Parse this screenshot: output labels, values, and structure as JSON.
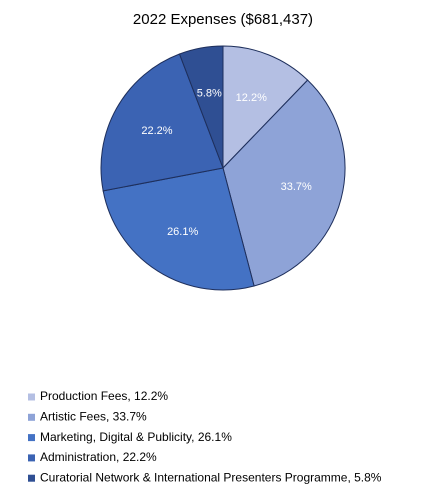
{
  "chart_data": {
    "type": "pie",
    "title": "2022 Expenses ($681,437)",
    "categories": [
      "Production Fees, 12.2%",
      "Artistic Fees, 33.7%",
      "Marketing, Digital & Publicity, 26.1%",
      "Administration, 22.2%",
      "Curatorial Network & International Presenters Programme, 5.8%"
    ],
    "values": [
      12.2,
      33.7,
      26.1,
      22.2,
      5.8
    ],
    "value_labels": [
      "12.2%",
      "33.7%",
      "26.1%",
      "22.2%",
      "5.8%"
    ],
    "colors": [
      "#b4bfe3",
      "#8ea3d7",
      "#4472c4",
      "#3b63b3",
      "#2f4f93"
    ],
    "legend": "bottom-left"
  }
}
